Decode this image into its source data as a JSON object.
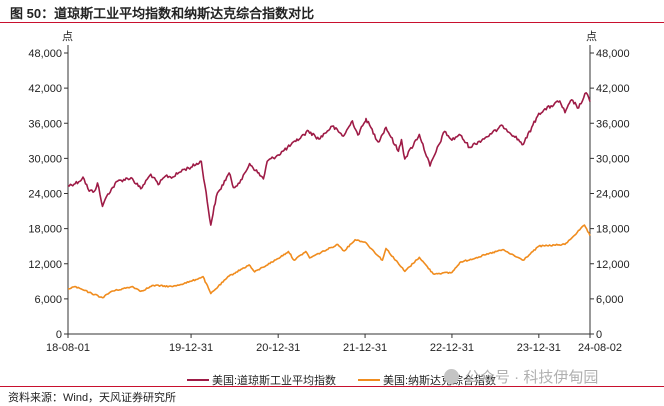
{
  "title": "图 50：道琼斯工业平均指数和纳斯达克综合指数对比",
  "source": "资料来源：Wind，天风证券研究所",
  "watermark": "公众号 · 科技伊甸园",
  "chart_data": {
    "type": "line",
    "left_unit": "点",
    "right_unit": "点",
    "x_tick_labels": [
      "18-08-01",
      "19-12-31",
      "20-12-31",
      "21-12-31",
      "22-12-31",
      "23-12-31",
      "24-08-02"
    ],
    "x_tick_dates": [
      "2018-08-01",
      "2019-12-31",
      "2020-12-31",
      "2021-12-31",
      "2022-12-31",
      "2023-12-31",
      "2024-08-02"
    ],
    "xlim": [
      "2018-08-01",
      "2024-08-02"
    ],
    "y_left": {
      "ticks": [
        0,
        6000,
        12000,
        18000,
        24000,
        30000,
        36000,
        42000,
        48000
      ],
      "tick_labels": [
        "0",
        "6,000",
        "12,000",
        "18,000",
        "24,000",
        "30,000",
        "36,000",
        "42,000",
        "48,000"
      ],
      "lim": [
        0,
        48000
      ]
    },
    "y_right": {
      "ticks": [
        0,
        6000,
        12000,
        18000,
        24000,
        30000,
        36000,
        42000,
        48000
      ],
      "tick_labels": [
        "0",
        "6,000",
        "12,000",
        "18,000",
        "24,000",
        "30,000",
        "36,000",
        "42,000",
        "48,000"
      ],
      "lim": [
        0,
        48000
      ]
    },
    "grid": false,
    "legend_position": "bottom",
    "series": [
      {
        "name": "美国:道琼斯工业平均指数",
        "color": "#9e1b46",
        "axis": "left",
        "points": [
          [
            "2018-08-01",
            25300
          ],
          [
            "2018-09-15",
            26000
          ],
          [
            "2018-10-03",
            26800
          ],
          [
            "2018-10-29",
            24400
          ],
          [
            "2018-11-20",
            24400
          ],
          [
            "2018-12-03",
            25800
          ],
          [
            "2018-12-24",
            21800
          ],
          [
            "2019-01-15",
            23900
          ],
          [
            "2019-02-25",
            26100
          ],
          [
            "2019-04-23",
            26700
          ],
          [
            "2019-06-03",
            24800
          ],
          [
            "2019-07-15",
            27300
          ],
          [
            "2019-08-15",
            25500
          ],
          [
            "2019-09-15",
            27000
          ],
          [
            "2019-10-15",
            26800
          ],
          [
            "2019-11-29",
            28100
          ],
          [
            "2019-12-31",
            28500
          ],
          [
            "2020-02-12",
            29500
          ],
          [
            "2020-03-23",
            18600
          ],
          [
            "2020-04-15",
            23500
          ],
          [
            "2020-06-08",
            27500
          ],
          [
            "2020-06-26",
            25000
          ],
          [
            "2020-08-01",
            26400
          ],
          [
            "2020-09-02",
            29100
          ],
          [
            "2020-10-30",
            26500
          ],
          [
            "2020-11-15",
            29500
          ],
          [
            "2020-12-31",
            30600
          ],
          [
            "2021-03-15",
            32900
          ],
          [
            "2021-05-07",
            34700
          ],
          [
            "2021-06-20",
            33300
          ],
          [
            "2021-08-15",
            35500
          ],
          [
            "2021-10-01",
            33800
          ],
          [
            "2021-11-08",
            36400
          ],
          [
            "2021-12-01",
            34000
          ],
          [
            "2021-12-31",
            36300
          ],
          [
            "2022-01-04",
            36800
          ],
          [
            "2022-02-24",
            32800
          ],
          [
            "2022-03-29",
            35300
          ],
          [
            "2022-05-20",
            31200
          ],
          [
            "2022-06-02",
            33200
          ],
          [
            "2022-06-16",
            29900
          ],
          [
            "2022-08-16",
            34100
          ],
          [
            "2022-09-30",
            28700
          ],
          [
            "2022-11-30",
            34600
          ],
          [
            "2022-12-31",
            33100
          ],
          [
            "2023-01-31",
            34100
          ],
          [
            "2023-03-15",
            31900
          ],
          [
            "2023-06-15",
            34200
          ],
          [
            "2023-08-01",
            35600
          ],
          [
            "2023-10-27",
            32400
          ],
          [
            "2023-12-31",
            37700
          ],
          [
            "2024-03-28",
            39800
          ],
          [
            "2024-04-19",
            37800
          ],
          [
            "2024-05-17",
            40000
          ],
          [
            "2024-06-15",
            38600
          ],
          [
            "2024-07-17",
            41200
          ],
          [
            "2024-08-02",
            39700
          ]
        ]
      },
      {
        "name": "美国:纳斯达克综合指数",
        "color": "#f08c1e",
        "axis": "right",
        "points": [
          [
            "2018-08-01",
            7700
          ],
          [
            "2018-08-29",
            8100
          ],
          [
            "2018-10-29",
            7100
          ],
          [
            "2018-12-24",
            6200
          ],
          [
            "2019-01-31",
            7300
          ],
          [
            "2019-04-30",
            8100
          ],
          [
            "2019-06-03",
            7300
          ],
          [
            "2019-07-26",
            8300
          ],
          [
            "2019-10-15",
            8100
          ],
          [
            "2019-12-31",
            9000
          ],
          [
            "2020-02-19",
            9800
          ],
          [
            "2020-03-23",
            6900
          ],
          [
            "2020-06-08",
            9900
          ],
          [
            "2020-08-31",
            11800
          ],
          [
            "2020-09-23",
            10600
          ],
          [
            "2020-12-31",
            12900
          ],
          [
            "2021-02-12",
            14100
          ],
          [
            "2021-03-08",
            12600
          ],
          [
            "2021-04-26",
            14100
          ],
          [
            "2021-05-12",
            13000
          ],
          [
            "2021-09-07",
            15300
          ],
          [
            "2021-10-04",
            14200
          ],
          [
            "2021-11-19",
            16100
          ],
          [
            "2021-12-31",
            15700
          ],
          [
            "2022-03-14",
            12600
          ],
          [
            "2022-03-29",
            14600
          ],
          [
            "2022-06-16",
            10700
          ],
          [
            "2022-08-16",
            13100
          ],
          [
            "2022-10-13",
            10300
          ],
          [
            "2022-12-31",
            10500
          ],
          [
            "2023-02-02",
            12200
          ],
          [
            "2023-07-31",
            14400
          ],
          [
            "2023-10-26",
            12600
          ],
          [
            "2023-12-31",
            15000
          ],
          [
            "2024-04-19",
            15300
          ],
          [
            "2024-07-10",
            18600
          ],
          [
            "2024-08-02",
            16800
          ]
        ]
      }
    ]
  }
}
